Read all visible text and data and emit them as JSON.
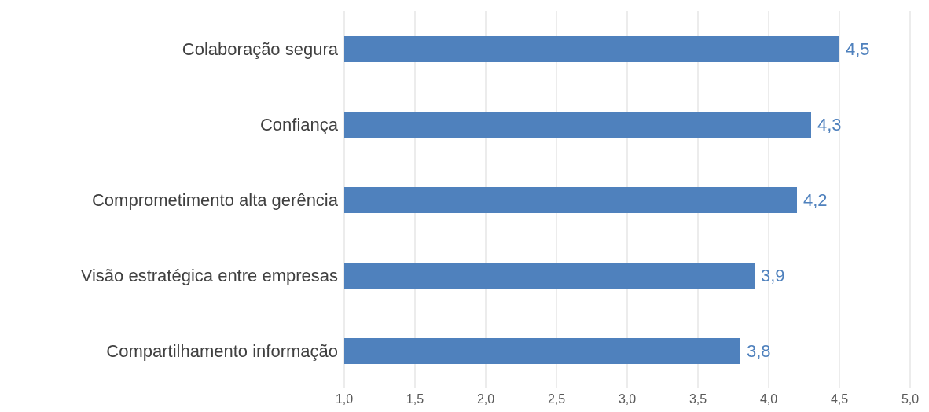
{
  "chart_data": {
    "type": "bar",
    "orientation": "horizontal",
    "categories": [
      "Colaboração segura",
      "Confiança",
      "Comprometimento alta gerência",
      "Visão estratégica entre empresas",
      "Compartilhamento informação"
    ],
    "values": [
      4.5,
      4.3,
      4.2,
      3.9,
      3.8
    ],
    "value_labels": [
      "4,5",
      "4,3",
      "4,2",
      "3,9",
      "3,8"
    ],
    "color": "#4f81bd",
    "xlim": [
      1,
      5
    ],
    "xticks": [
      {
        "value": 1,
        "label": "1,0"
      },
      {
        "value": 1.5,
        "label": "1,5"
      },
      {
        "value": 2,
        "label": "2,0"
      },
      {
        "value": 2.5,
        "label": "2,5"
      },
      {
        "value": 3,
        "label": "3,0"
      },
      {
        "value": 3.5,
        "label": "3,5"
      },
      {
        "value": 4,
        "label": "4,0"
      },
      {
        "value": 4.5,
        "label": "4,5"
      },
      {
        "value": 5,
        "label": "5,0"
      }
    ],
    "grid": "x"
  }
}
